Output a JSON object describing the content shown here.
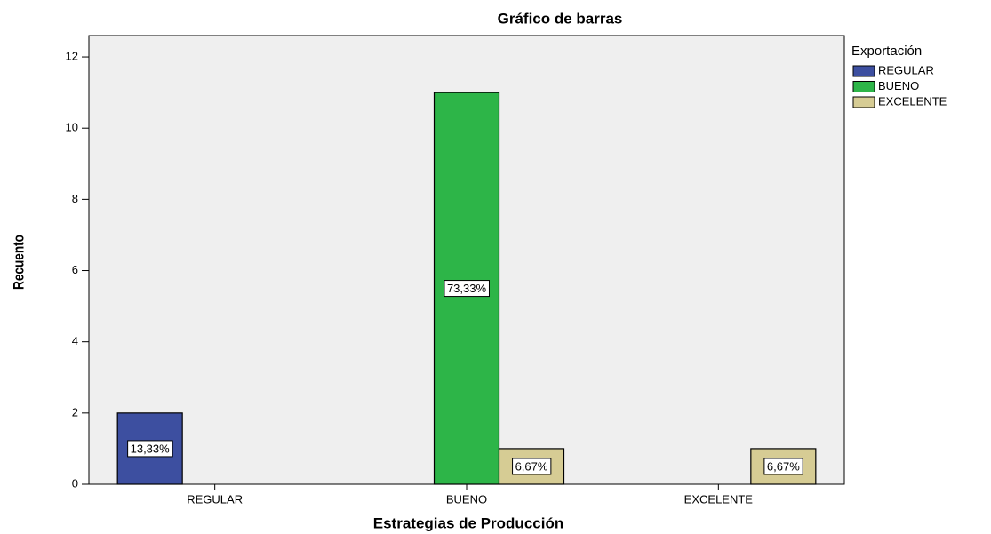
{
  "chart_data": {
    "type": "bar",
    "title": "Gráfico de barras",
    "x_label": "Estrategias de Producción",
    "y_label": "Recuento",
    "legend_title": "Exportación",
    "legend": "right",
    "categories": [
      "REGULAR",
      "BUENO",
      "EXCELENTE"
    ],
    "series": [
      {
        "name": "REGULAR",
        "color": "#3d4fa0",
        "values": [
          2,
          null,
          null
        ],
        "labels": [
          "13,33%",
          null,
          null
        ]
      },
      {
        "name": "BUENO",
        "color": "#2db548",
        "values": [
          null,
          11,
          null
        ],
        "labels": [
          null,
          "73,33%",
          null
        ]
      },
      {
        "name": "EXCELENTE",
        "color": "#d6cc94",
        "values": [
          null,
          1,
          1
        ],
        "labels": [
          null,
          "6,67%",
          "6,67%"
        ]
      }
    ],
    "ylim": [
      0,
      12.6
    ],
    "yticks": [
      0,
      2,
      4,
      6,
      8,
      10,
      12
    ],
    "grid": false
  }
}
